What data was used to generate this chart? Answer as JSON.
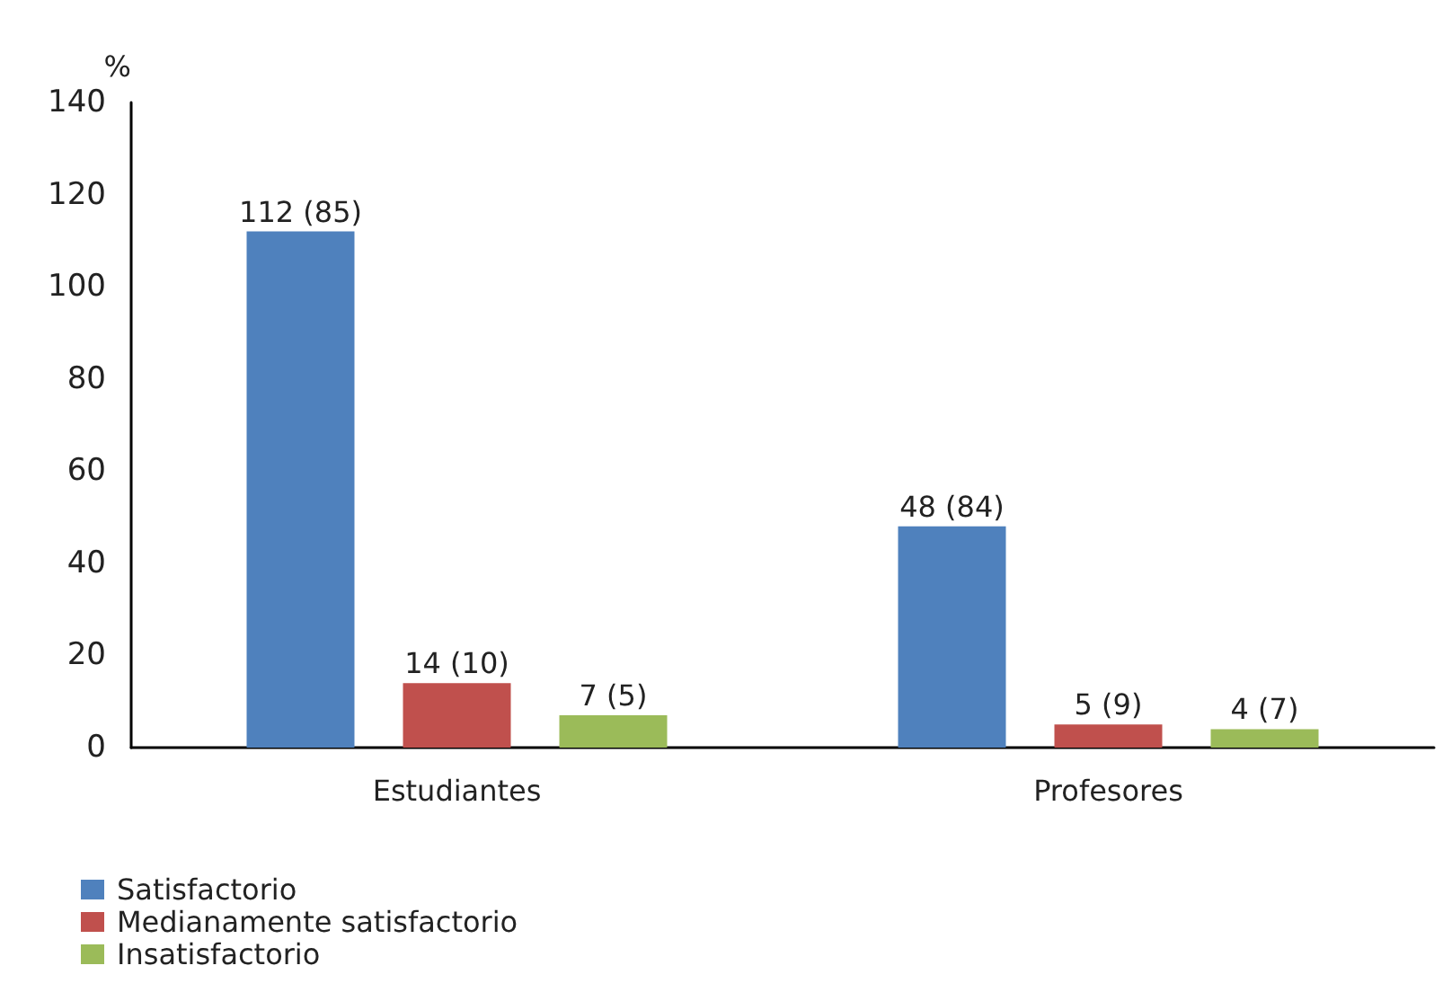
{
  "chart_data": {
    "type": "bar",
    "ylabel": "%",
    "categories": [
      "Estudiantes",
      "Profesores"
    ],
    "series": [
      {
        "name": "Satisfactorio",
        "color": "#4f81bd",
        "values": [
          112,
          48
        ],
        "value_labels": [
          "112 (85)",
          "48 (84)"
        ]
      },
      {
        "name": "Medianamente satisfactorio",
        "color": "#c0504d",
        "values": [
          14,
          5
        ],
        "value_labels": [
          "14 (10)",
          "5 (9)"
        ]
      },
      {
        "name": "Insatisfactorio",
        "color": "#9bbb59",
        "values": [
          7,
          4
        ],
        "value_labels": [
          "7 (5)",
          "4 (7)"
        ]
      }
    ],
    "ylim": [
      0,
      140
    ],
    "yticks": [
      0,
      20,
      40,
      60,
      80,
      100,
      120,
      140
    ],
    "grid": false,
    "legend": "bottom left"
  }
}
